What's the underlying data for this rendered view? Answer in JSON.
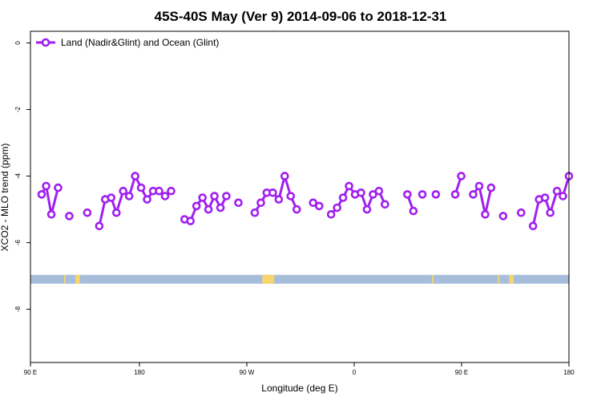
{
  "chart_data": {
    "type": "line",
    "title": "45S-40S May (Ver 9)   2014-09-06 to 2018-12-31",
    "xlabel": "Longitude (deg E)",
    "ylabel": "XCO2 - MLO trend (ppm)",
    "xlim": [
      90,
      450
    ],
    "ylim": [
      -9.6,
      0.35
    ],
    "x_ticks": [
      {
        "value": 90,
        "label": "90 E"
      },
      {
        "value": 180,
        "label": "180"
      },
      {
        "value": 270,
        "label": "90 W"
      },
      {
        "value": 360,
        "label": "0"
      },
      {
        "value": 450,
        "label": "90 E"
      },
      {
        "value": 540,
        "label": "180"
      }
    ],
    "y_ticks": [
      0,
      -2,
      -4,
      -6,
      -8
    ],
    "grid": false,
    "legend_position": "top-left",
    "series": [
      {
        "name": "Land (Nadir&Glint) and Ocean (Glint)",
        "color": "#a020f0",
        "segments": [
          [
            [
              97.5,
              -4.55
            ],
            [
              100.5,
              -4.3
            ],
            [
              104,
              -5.15
            ],
            [
              108.5,
              -4.35
            ]
          ],
          [
            [
              116,
              -5.2
            ]
          ],
          [
            [
              128,
              -5.1
            ]
          ],
          [
            [
              136,
              -5.5
            ],
            [
              140,
              -4.7
            ],
            [
              144,
              -4.65
            ],
            [
              147.5,
              -5.1
            ],
            [
              152,
              -4.45
            ],
            [
              156,
              -4.6
            ],
            [
              160,
              -4.0
            ],
            [
              164,
              -4.35
            ],
            [
              168,
              -4.7
            ],
            [
              172,
              -4.45
            ],
            [
              176,
              -4.45
            ],
            [
              180,
              -4.6
            ],
            [
              184,
              -4.45
            ]
          ],
          [
            [
              193,
              -5.3
            ],
            [
              197,
              -5.35
            ],
            [
              201,
              -4.9
            ],
            [
              205,
              -4.65
            ],
            [
              209,
              -5.0
            ],
            [
              213,
              -4.6
            ],
            [
              217,
              -4.95
            ],
            [
              221,
              -4.6
            ]
          ],
          [
            [
              229,
              -4.8
            ]
          ],
          [
            [
              240,
              -5.1
            ],
            [
              244,
              -4.8
            ],
            [
              248,
              -4.5
            ],
            [
              252,
              -4.5
            ],
            [
              256,
              -4.7
            ],
            [
              260,
              -4.0
            ],
            [
              264,
              -4.6
            ],
            [
              268,
              -5.0
            ]
          ],
          [
            [
              279,
              -4.8
            ],
            [
              283,
              -4.9
            ]
          ],
          [
            [
              291,
              -5.15
            ],
            [
              295,
              -4.95
            ],
            [
              299,
              -4.65
            ],
            [
              303,
              -4.3
            ],
            [
              307,
              -4.55
            ],
            [
              311,
              -4.5
            ],
            [
              315,
              -5.0
            ],
            [
              319,
              -4.55
            ],
            [
              323,
              -4.45
            ],
            [
              327,
              -4.85
            ]
          ],
          [
            [
              342,
              -4.55
            ],
            [
              346,
              -5.05
            ]
          ],
          [
            [
              352,
              -4.55
            ]
          ],
          [
            [
              361,
              -4.55
            ]
          ],
          [
            [
              374,
              -4.55
            ],
            [
              378,
              -4.0
            ]
          ],
          [
            [
              386,
              -4.55
            ],
            [
              390,
              -4.3
            ],
            [
              394,
              -5.15
            ],
            [
              398,
              -4.35
            ]
          ],
          [
            [
              406,
              -5.2
            ]
          ],
          [
            [
              418,
              -5.1
            ]
          ],
          [
            [
              426,
              -5.5
            ],
            [
              430,
              -4.7
            ],
            [
              434,
              -4.65
            ],
            [
              437.5,
              -5.1
            ],
            [
              442,
              -4.45
            ],
            [
              446,
              -4.6
            ],
            [
              450,
              -4.0
            ]
          ]
        ]
      }
    ],
    "map_strip": {
      "y": -7.1,
      "ocean_color": "#a6bddb",
      "land_color": "#f7d56b",
      "land_ranges": [
        [
          112.5,
          113.5
        ],
        [
          120,
          123
        ],
        [
          245,
          253
        ],
        [
          358.5,
          359.5
        ],
        [
          402.5,
          403.5
        ],
        [
          410,
          413
        ]
      ]
    }
  }
}
